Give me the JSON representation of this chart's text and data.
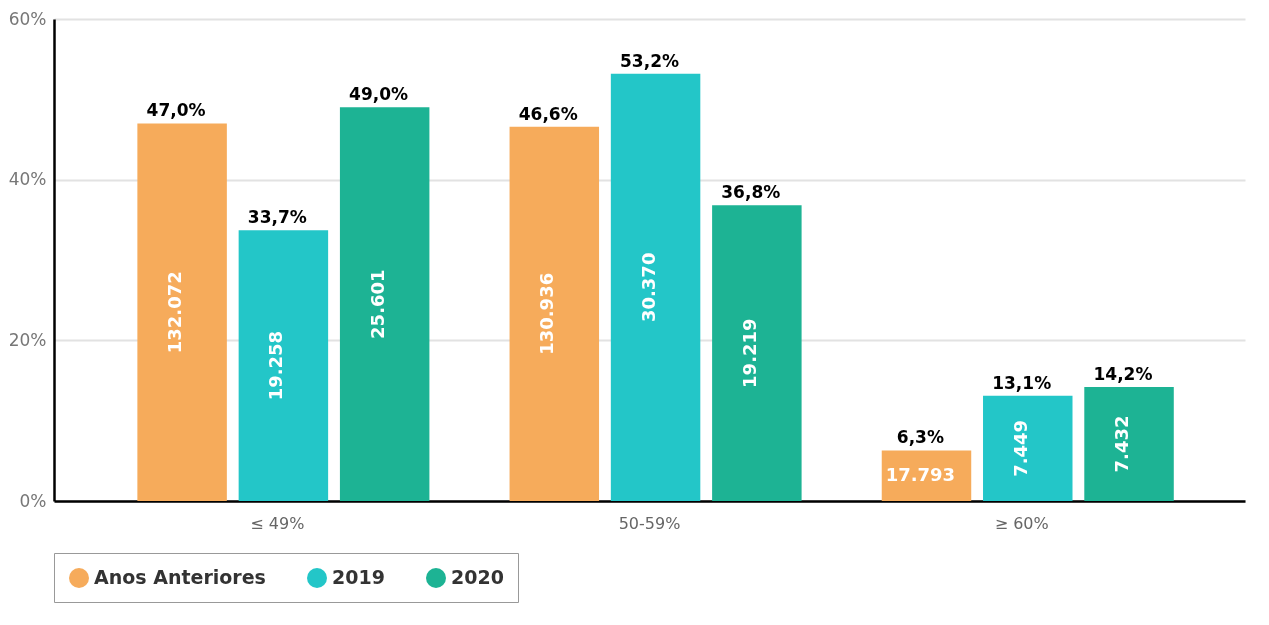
{
  "chart_data": {
    "type": "bar",
    "categories": [
      "≤ 49%",
      "50-59%",
      "≥ 60%"
    ],
    "series": [
      {
        "name": "Anos Anteriores",
        "color": "#f6ab5b",
        "values": [
          47.0,
          46.6,
          6.3
        ],
        "value_labels": [
          "47,0%",
          "46,6%",
          "6,3%"
        ]
      },
      {
        "name": "2019",
        "color": "#23c6c8",
        "values": [
          33.7,
          53.2,
          13.1
        ],
        "value_labels": [
          "33,7%",
          "53,2%",
          "13,1%"
        ]
      },
      {
        "name": "2020",
        "color": "#1db394",
        "values": [
          49.0,
          36.8,
          14.2
        ],
        "value_labels": [
          "49,0%",
          "36,8%",
          "14,2%"
        ]
      }
    ],
    "ylim": [
      0,
      60
    ],
    "yticks": [
      {
        "value": 0,
        "label": "0%"
      },
      {
        "value": 20,
        "label": "20%"
      },
      {
        "value": 40,
        "label": "40%"
      },
      {
        "value": 60,
        "label": "60%"
      }
    ],
    "grid": "y",
    "legend": "bottom",
    "marker": "circle",
    "annotations": [
      "132.072",
      "130.936",
      "17.793",
      "19.258",
      "30.370",
      "7.449",
      "25.601",
      "19.219",
      "7.432"
    ]
  }
}
